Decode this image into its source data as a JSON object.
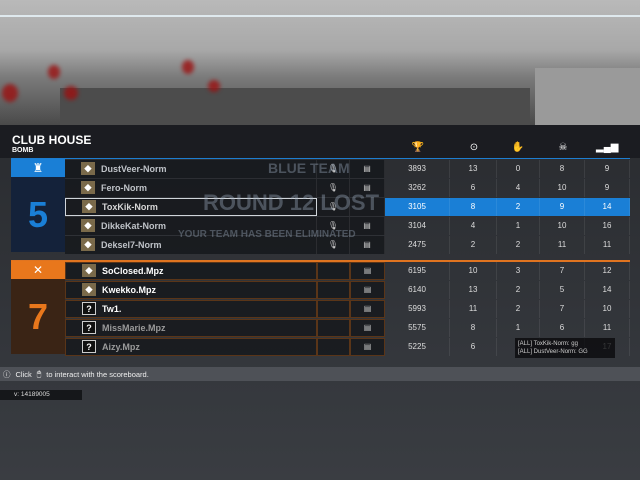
{
  "map": {
    "name": "CLUB HOUSE",
    "mode": "BOMB"
  },
  "columns": [
    {
      "icon": "trophy-icon",
      "label": "score"
    },
    {
      "icon": "target-icon",
      "label": "kills"
    },
    {
      "icon": "hand-icon",
      "label": "assists"
    },
    {
      "icon": "skull-icon",
      "label": "deaths"
    },
    {
      "icon": "signal-icon",
      "label": "ping"
    }
  ],
  "background_text": {
    "team": "BLUE TEAM",
    "round": "ROUND 12 LOST",
    "message": "YOUR TEAM HAS BEEN ELIMINATED"
  },
  "teams": [
    {
      "color": "#1a7fd6",
      "icon": "tower-icon",
      "score": "5",
      "players": [
        {
          "name": "DustVeer-Norm",
          "score": "3893",
          "kills": "13",
          "assists": "0",
          "deaths": "8",
          "ping": "9"
        },
        {
          "name": "Fero-Norm",
          "score": "3262",
          "kills": "6",
          "assists": "4",
          "deaths": "10",
          "ping": "9"
        },
        {
          "name": "ToxKik-Norm",
          "score": "3105",
          "kills": "8",
          "assists": "2",
          "deaths": "9",
          "ping": "14",
          "selected": true
        },
        {
          "name": "DikkeKat-Norm",
          "score": "3104",
          "kills": "4",
          "assists": "1",
          "deaths": "10",
          "ping": "16"
        },
        {
          "name": "Deksel7-Norm",
          "score": "2475",
          "kills": "2",
          "assists": "2",
          "deaths": "11",
          "ping": "11"
        }
      ]
    },
    {
      "color": "#e8771c",
      "icon": "crossed-swords-icon",
      "score": "7",
      "players": [
        {
          "name": "SoClosed.Mpz",
          "score": "6195",
          "kills": "10",
          "assists": "3",
          "deaths": "7",
          "ping": "12"
        },
        {
          "name": "Kwekko.Mpz",
          "score": "6140",
          "kills": "13",
          "assists": "2",
          "deaths": "5",
          "ping": "14"
        },
        {
          "name": "Tw1.",
          "score": "5993",
          "kills": "11",
          "assists": "2",
          "deaths": "7",
          "ping": "10"
        },
        {
          "name": "MissMarie.Mpz",
          "score": "5575",
          "kills": "8",
          "assists": "1",
          "deaths": "6",
          "ping": "11"
        },
        {
          "name": "Aizy.Mpz",
          "score": "5225",
          "kills": "6",
          "assists": "",
          "deaths": "",
          "ping": "17"
        }
      ]
    }
  ],
  "chat": [
    "[ALL] ToxKik-Norm: gg",
    "[ALL] DustVeer-Norm: GG"
  ],
  "hint": {
    "pre": "Click",
    "post": "to interact with the scoreboard."
  },
  "version": "v:  14189005"
}
